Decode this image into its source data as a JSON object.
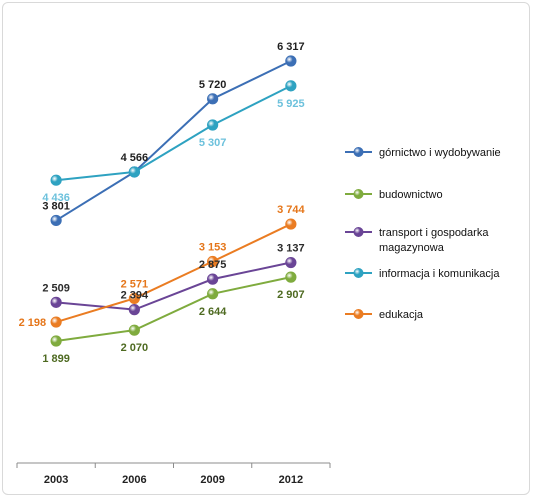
{
  "chart_data": {
    "type": "line",
    "title": "",
    "xlabel": "",
    "ylabel": "",
    "x": [
      "2003",
      "2006",
      "2009",
      "2012"
    ],
    "ylim": [
      0,
      7000
    ],
    "grid": false,
    "legend_placement": "right",
    "series": [
      {
        "name": "górnictwo i wydobywanie",
        "values": [
          3801,
          4566,
          5720,
          6317
        ],
        "labels": [
          "3 801",
          "4 566",
          "5 720",
          "6 317"
        ],
        "color": "#3c6fb5",
        "label_color": "#1f1f1f",
        "label_pos": [
          "above",
          "above",
          "above",
          "above"
        ]
      },
      {
        "name": "budownictwo",
        "values": [
          1899,
          2070,
          2644,
          2907
        ],
        "labels": [
          "1 899",
          "2 070",
          "2 644",
          "2 907"
        ],
        "color": "#7fab3e",
        "label_color": "#4e6a21",
        "label_pos": [
          "below",
          "below",
          "below",
          "below"
        ]
      },
      {
        "name": "transport i gospodarka magazynowa",
        "legend_lines": [
          "transport i gospodarka",
          "magazynowa"
        ],
        "values": [
          2509,
          2394,
          2875,
          3137
        ],
        "labels": [
          "2 509",
          "2 394",
          "2 875",
          "3 137"
        ],
        "color": "#6a4596",
        "label_color": "#2b2b2b",
        "label_pos": [
          "above",
          "above",
          "above",
          "above"
        ]
      },
      {
        "name": "informacja i komunikacja",
        "values": [
          4436,
          4566,
          5307,
          5925
        ],
        "labels": [
          "4 436",
          "",
          "5 307",
          "5 925"
        ],
        "color": "#2ea2c1",
        "label_color": "#6cc1dc",
        "label_pos": [
          "below",
          "none",
          "below",
          "below"
        ]
      },
      {
        "name": "edukacja",
        "values": [
          2198,
          2571,
          3153,
          3744
        ],
        "labels": [
          "2 198",
          "2 571",
          "3 153",
          "3 744"
        ],
        "color": "#ea7c22",
        "label_color": "#e5761a",
        "label_pos": [
          "left",
          "above",
          "above",
          "above"
        ]
      }
    ]
  }
}
